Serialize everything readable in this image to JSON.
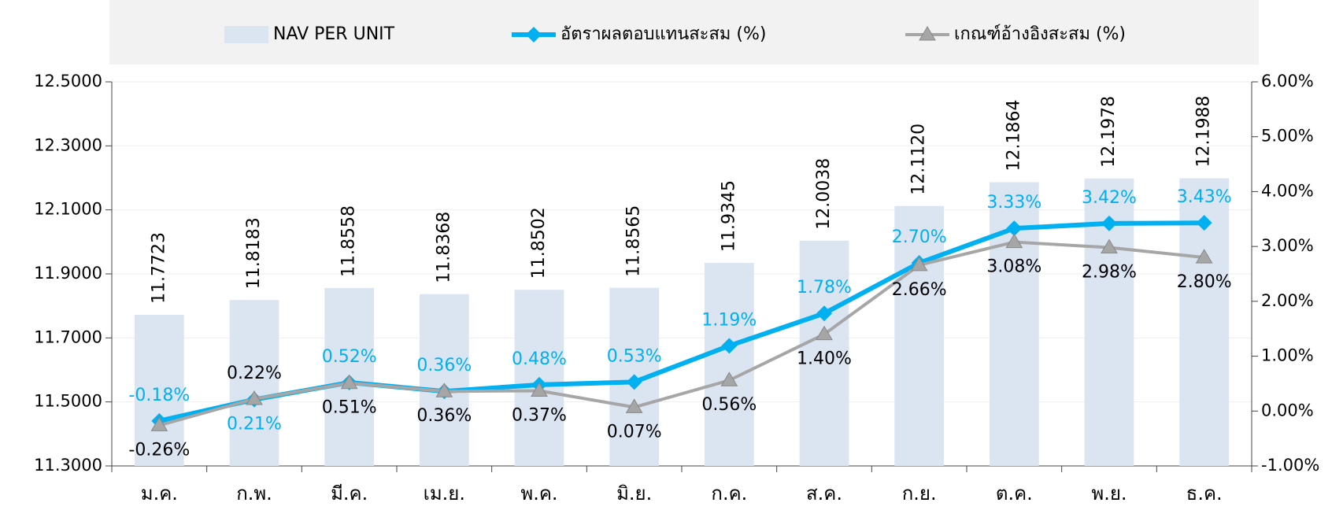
{
  "chart_data": {
    "type": "bar_line",
    "categories": [
      "ม.ค.",
      "ก.พ.",
      "มี.ค.",
      "เม.ย.",
      "พ.ค.",
      "มิ.ย.",
      "ก.ค.",
      "ส.ค.",
      "ก.ย.",
      "ต.ค.",
      "พ.ย.",
      "ธ.ค."
    ],
    "series": [
      {
        "name": "NAV PER UNIT",
        "type": "bar",
        "color": "#dbe4f1",
        "values": [
          11.7723,
          11.8183,
          11.8558,
          11.8368,
          11.8502,
          11.8565,
          11.9345,
          12.0038,
          12.112,
          12.1864,
          12.1978,
          12.1988
        ],
        "value_labels": [
          "11.7723",
          "11.8183",
          "11.8558",
          "11.8368",
          "11.8502",
          "11.8565",
          "11.9345",
          "12.0038",
          "12.1120",
          "12.1864",
          "12.1978",
          "12.1988"
        ]
      },
      {
        "name": "อัตราผลตอบแทนสะสม (%)",
        "type": "line",
        "axis": "y2",
        "color": "#00b0f0",
        "marker": "diamond",
        "values": [
          -0.18,
          0.21,
          0.52,
          0.36,
          0.48,
          0.53,
          1.19,
          1.78,
          2.7,
          3.33,
          3.42,
          3.43
        ],
        "value_labels": [
          "-0.18%",
          "0.21%",
          "0.52%",
          "0.36%",
          "0.48%",
          "0.53%",
          "1.19%",
          "1.78%",
          "2.70%",
          "3.33%",
          "3.42%",
          "3.43%"
        ]
      },
      {
        "name": "เกณฑ์อ้างอิงสะสม (%)",
        "type": "line",
        "axis": "y2",
        "color": "#a6a6a6",
        "marker": "triangle",
        "values": [
          -0.26,
          0.22,
          0.51,
          0.36,
          0.37,
          0.07,
          0.56,
          1.4,
          2.66,
          3.08,
          2.98,
          2.8
        ],
        "value_labels": [
          "-0.26%",
          "0.22%",
          "0.51%",
          "0.36%",
          "0.37%",
          "0.07%",
          "0.56%",
          "1.40%",
          "2.66%",
          "3.08%",
          "2.98%",
          "2.80%"
        ]
      }
    ],
    "ylim": [
      11.3,
      12.5
    ],
    "yticks": [
      {
        "value": 11.3,
        "label": "11.3000"
      },
      {
        "value": 11.5,
        "label": "11.5000"
      },
      {
        "value": 11.7,
        "label": "11.7000"
      },
      {
        "value": 11.9,
        "label": "11.9000"
      },
      {
        "value": 12.1,
        "label": "12.1000"
      },
      {
        "value": 12.3,
        "label": "12.3000"
      },
      {
        "value": 12.5,
        "label": "12.5000"
      }
    ],
    "y2lim": [
      -1,
      6
    ],
    "y2ticks": [
      {
        "value": -1,
        "label": "-1.00%"
      },
      {
        "value": 0,
        "label": "0.00%"
      },
      {
        "value": 1,
        "label": "1.00%"
      },
      {
        "value": 2,
        "label": "2.00%"
      },
      {
        "value": 3,
        "label": "3.00%"
      },
      {
        "value": 4,
        "label": "4.00%"
      },
      {
        "value": 5,
        "label": "5.00%"
      },
      {
        "value": 6,
        "label": "6.00%"
      }
    ],
    "grid": true,
    "legend": "top"
  }
}
